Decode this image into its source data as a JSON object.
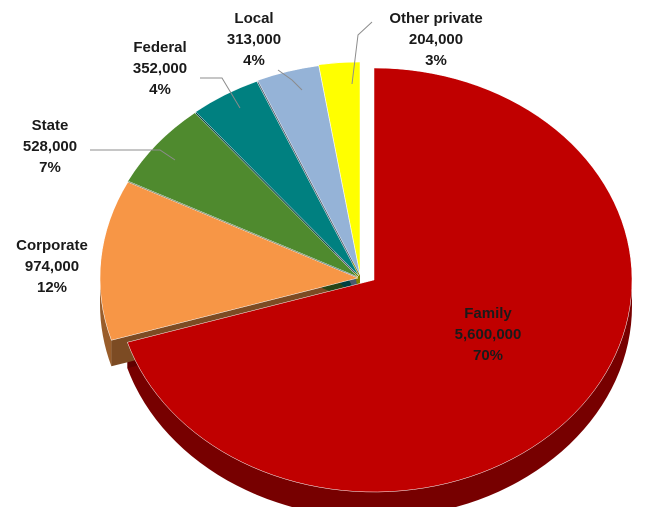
{
  "chart_data": {
    "type": "pie",
    "style": "3d-exploded",
    "title": "",
    "slices": [
      {
        "name": "Family",
        "value_label": "5,600,000",
        "percent_label": "70%",
        "value": 5600000,
        "percent": 70,
        "color": "#c00000"
      },
      {
        "name": "Corporate",
        "value_label": "974,000",
        "percent_label": "12%",
        "value": 974000,
        "percent": 12,
        "color": "#f79646"
      },
      {
        "name": "State",
        "value_label": "528,000",
        "percent_label": "7%",
        "value": 528000,
        "percent": 7,
        "color": "#4f8a2e"
      },
      {
        "name": "Federal",
        "value_label": "352,000",
        "percent_label": "4%",
        "value": 352000,
        "percent": 4,
        "color": "#008080"
      },
      {
        "name": "Local",
        "value_label": "313,000",
        "percent_label": "4%",
        "value": 313000,
        "percent": 4,
        "color": "#95b3d7"
      },
      {
        "name": "Other private",
        "value_label": "204,000",
        "percent_label": "3%",
        "value": 204000,
        "percent": 3,
        "color": "#ffff00"
      }
    ]
  }
}
